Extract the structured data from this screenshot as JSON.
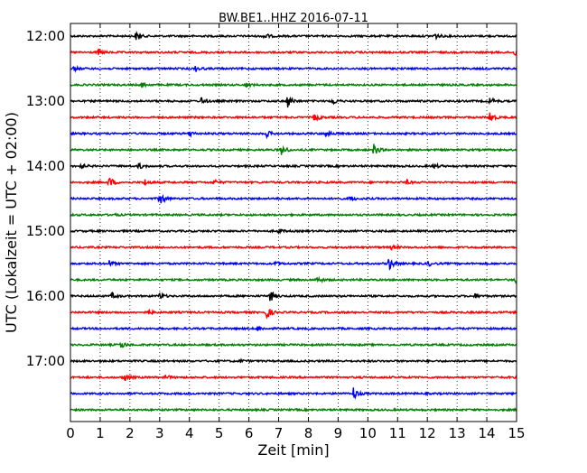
{
  "chart_data": {
    "type": "line",
    "title": "BW.BE1..HHZ 2016-07-11",
    "xlabel": "Zeit  [min]",
    "ylabel": "UTC (Lokalzeit = UTC + 02:00)",
    "xlim": [
      0,
      15
    ],
    "x_ticks": [
      0,
      1,
      2,
      3,
      4,
      5,
      6,
      7,
      8,
      9,
      10,
      11,
      12,
      13,
      14,
      15
    ],
    "y_tick_labels": [
      "12:00",
      "13:00",
      "14:00",
      "15:00",
      "16:00",
      "17:00"
    ],
    "grid": "vertical dotted",
    "line_colors": [
      "#000000",
      "#ff0000",
      "#0000ff",
      "#008000"
    ],
    "traces": [
      {
        "start": "12:00",
        "events": [
          [
            2.2,
            0.5
          ],
          [
            6.5,
            0.5
          ],
          [
            12.2,
            0.6
          ]
        ]
      },
      {
        "start": "12:15",
        "events": [
          [
            0.95,
            0.4
          ],
          [
            14.95,
            0.6
          ]
        ]
      },
      {
        "start": "12:30",
        "events": [
          [
            0.1,
            0.3
          ],
          [
            4.2,
            0.4
          ]
        ]
      },
      {
        "start": "12:45",
        "events": [
          [
            2.4,
            0.3
          ],
          [
            5.9,
            0.3
          ]
        ]
      },
      {
        "start": "13:00",
        "events": [
          [
            4.4,
            0.5
          ],
          [
            7.3,
            0.9
          ],
          [
            8.8,
            0.5
          ],
          [
            14.1,
            0.5
          ]
        ]
      },
      {
        "start": "13:15",
        "events": [
          [
            8.2,
            0.6
          ],
          [
            14.1,
            0.8
          ]
        ]
      },
      {
        "start": "13:30",
        "events": [
          [
            4.0,
            0.4
          ],
          [
            6.6,
            0.4
          ],
          [
            8.6,
            0.5
          ]
        ]
      },
      {
        "start": "13:45",
        "events": [
          [
            7.1,
            0.8
          ],
          [
            10.2,
            0.8
          ]
        ]
      },
      {
        "start": "14:00",
        "events": [
          [
            0.35,
            0.4
          ],
          [
            2.3,
            0.4
          ],
          [
            12.2,
            0.4
          ]
        ]
      },
      {
        "start": "14:15",
        "events": [
          [
            1.3,
            0.8
          ],
          [
            2.5,
            0.4
          ],
          [
            4.8,
            0.4
          ],
          [
            11.3,
            0.3
          ]
        ]
      },
      {
        "start": "14:30",
        "events": [
          [
            3.0,
            1.0
          ],
          [
            9.4,
            0.4
          ]
        ]
      },
      {
        "start": "14:45",
        "events": [
          [
            1.4,
            0.2
          ]
        ]
      },
      {
        "start": "15:00",
        "events": [
          [
            7.0,
            0.3
          ]
        ]
      },
      {
        "start": "15:15",
        "events": [
          [
            10.8,
            0.3
          ]
        ]
      },
      {
        "start": "15:30",
        "events": [
          [
            1.3,
            0.4
          ],
          [
            6.9,
            0.3
          ],
          [
            10.7,
            1.0
          ],
          [
            12.0,
            0.4
          ]
        ]
      },
      {
        "start": "15:45",
        "events": [
          [
            8.3,
            0.5
          ],
          [
            14.95,
            0.5
          ]
        ]
      },
      {
        "start": "16:00",
        "events": [
          [
            1.4,
            0.4
          ],
          [
            3.0,
            0.4
          ],
          [
            6.7,
            0.9
          ],
          [
            13.6,
            0.3
          ]
        ]
      },
      {
        "start": "16:15",
        "events": [
          [
            2.6,
            0.3
          ],
          [
            6.6,
            0.9
          ]
        ]
      },
      {
        "start": "16:30",
        "events": [
          [
            6.3,
            0.3
          ]
        ]
      },
      {
        "start": "16:45",
        "events": [
          [
            1.7,
            0.5
          ]
        ]
      },
      {
        "start": "17:00",
        "events": [
          [
            5.7,
            0.2
          ]
        ]
      },
      {
        "start": "17:15",
        "events": [
          [
            1.8,
            0.6
          ],
          [
            3.2,
            0.3
          ]
        ]
      },
      {
        "start": "17:30",
        "events": [
          [
            9.5,
            1.0
          ]
        ]
      },
      {
        "start": "17:45",
        "events": []
      }
    ]
  }
}
